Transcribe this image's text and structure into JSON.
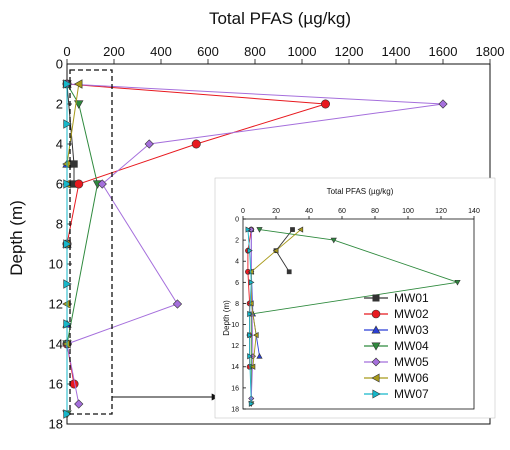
{
  "colors": {
    "MW01": "#333333",
    "MW02": "#e8191f",
    "MW03": "#2a3fd6",
    "MW04": "#2f8a3e",
    "MW05": "#a56fdc",
    "MW06": "#a89a1a",
    "MW07": "#16b7c9"
  },
  "chart_data": [
    {
      "type": "line",
      "xlabel": "Total PFAS (µg/kg)",
      "ylabel": "Depth (m)",
      "xlim": [
        0,
        1800
      ],
      "ylim": [
        0,
        18
      ],
      "x_ticks": [
        0,
        200,
        400,
        600,
        800,
        1000,
        1200,
        1400,
        1600,
        1800
      ],
      "y_ticks": [
        0,
        2,
        4,
        6,
        8,
        10,
        12,
        14,
        16,
        18
      ],
      "x_axis_position": "top",
      "y_inverted": true,
      "series": [
        {
          "name": "MW01",
          "marker": "square",
          "points": [
            [
              0,
              1
            ],
            [
              30,
              5
            ],
            [
              30,
              6
            ]
          ]
        },
        {
          "name": "MW02",
          "marker": "circle",
          "points": [
            [
              0,
              1
            ],
            [
              1100,
              2
            ],
            [
              550,
              4
            ],
            [
              50,
              6
            ],
            [
              0,
              9
            ],
            [
              0,
              14
            ],
            [
              30,
              16
            ]
          ]
        },
        {
          "name": "MW03",
          "marker": "triangle-up",
          "points": [
            [
              0,
              1
            ],
            [
              0,
              5
            ],
            [
              0,
              9
            ],
            [
              0,
              13
            ]
          ]
        },
        {
          "name": "MW04",
          "marker": "triangle-down",
          "points": [
            [
              0,
              1
            ],
            [
              50,
              2
            ],
            [
              130,
              6
            ],
            [
              0,
              14
            ],
            [
              0,
              17.5
            ]
          ]
        },
        {
          "name": "MW05",
          "marker": "diamond",
          "points": [
            [
              0,
              1
            ],
            [
              1600,
              2
            ],
            [
              350,
              4
            ],
            [
              150,
              6
            ],
            [
              470,
              12
            ],
            [
              0,
              14
            ],
            [
              50,
              17
            ]
          ]
        },
        {
          "name": "MW06",
          "marker": "triangle-left",
          "points": [
            [
              50,
              1
            ],
            [
              0,
              5
            ],
            [
              0,
              6
            ],
            [
              0,
              9
            ],
            [
              0,
              12
            ],
            [
              0,
              14
            ]
          ]
        },
        {
          "name": "MW07",
          "marker": "triangle-right",
          "points": [
            [
              0,
              1
            ],
            [
              0,
              3
            ],
            [
              0,
              6
            ],
            [
              0,
              9
            ],
            [
              0,
              11
            ],
            [
              0,
              13
            ],
            [
              0,
              17.5
            ]
          ]
        }
      ]
    },
    {
      "type": "line",
      "xlabel": "Total PFAS (µg/kg)",
      "ylabel": "Depth (m)",
      "xlim": [
        0,
        140
      ],
      "ylim": [
        0,
        18
      ],
      "x_ticks": [
        0,
        20,
        40,
        60,
        80,
        100,
        120,
        140
      ],
      "y_ticks": [
        0,
        2,
        4,
        6,
        8,
        10,
        12,
        14,
        16,
        18
      ],
      "x_axis_position": "top",
      "y_inverted": true,
      "legend_position": "bottom-right",
      "series": [
        {
          "name": "MW01",
          "marker": "square",
          "points": [
            [
              30,
              1
            ],
            [
              20,
              3
            ],
            [
              28,
              5
            ]
          ]
        },
        {
          "name": "MW02",
          "marker": "circle",
          "points": [
            [
              5,
              1
            ],
            [
              3,
              3
            ],
            [
              3,
              5
            ],
            [
              4,
              8
            ],
            [
              4,
              11
            ],
            [
              4,
              14
            ]
          ]
        },
        {
          "name": "MW03",
          "marker": "triangle-up",
          "points": [
            [
              5,
              1
            ],
            [
              5,
              5
            ],
            [
              6,
              9
            ],
            [
              10,
              13
            ]
          ]
        },
        {
          "name": "MW04",
          "marker": "triangle-down",
          "points": [
            [
              10,
              1
            ],
            [
              55,
              2
            ],
            [
              130,
              6
            ],
            [
              5,
              9
            ],
            [
              5,
              14
            ],
            [
              5,
              17.5
            ]
          ]
        },
        {
          "name": "MW05",
          "marker": "diamond",
          "points": [
            [
              5,
              1
            ],
            [
              5,
              5
            ],
            [
              6,
              13
            ],
            [
              5,
              17
            ]
          ]
        },
        {
          "name": "MW06",
          "marker": "triangle-left",
          "points": [
            [
              35,
              1
            ],
            [
              20,
              3
            ],
            [
              5,
              5
            ],
            [
              5,
              8
            ],
            [
              8,
              11
            ],
            [
              6,
              14
            ]
          ]
        },
        {
          "name": "MW07",
          "marker": "triangle-right",
          "points": [
            [
              3,
              1
            ],
            [
              4,
              3
            ],
            [
              5,
              6
            ],
            [
              4,
              9
            ],
            [
              4,
              11
            ],
            [
              4,
              13
            ],
            [
              5,
              17.5
            ]
          ]
        }
      ]
    }
  ]
}
